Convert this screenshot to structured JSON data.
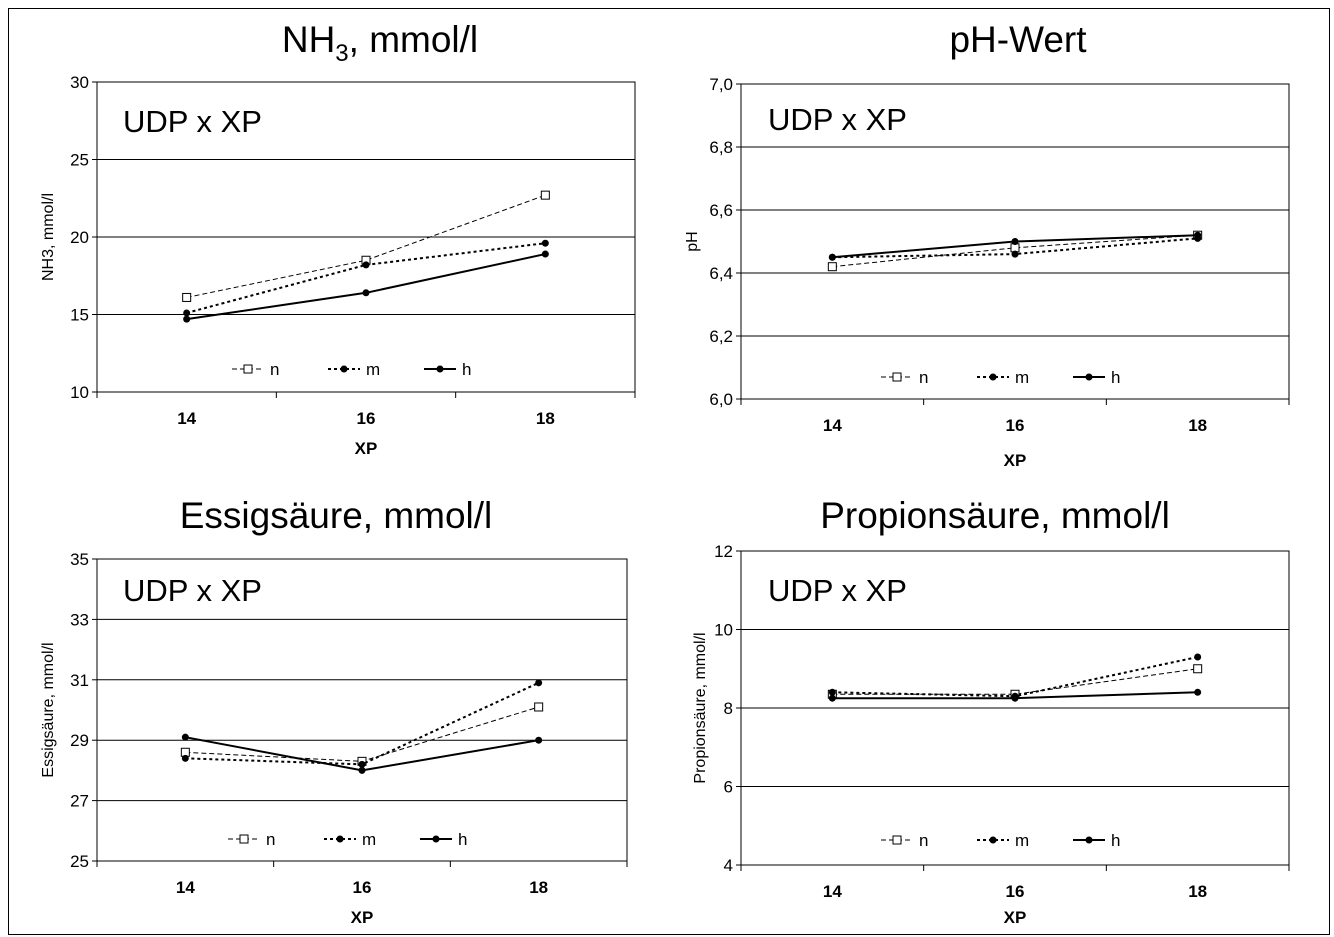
{
  "chart_data": [
    {
      "type": "line",
      "title": "NH",
      "title_sub": "3",
      "title_rest": ", mmol/l",
      "annotation": "UDP x XP",
      "xlabel": "XP",
      "ylabel": "NH3, mmol/l",
      "categories": [
        "14",
        "16",
        "18"
      ],
      "ylim": [
        10,
        30
      ],
      "yticks": [
        "10",
        "15",
        "20",
        "25",
        "30"
      ],
      "ytick_values": [
        10,
        15,
        20,
        25,
        30
      ],
      "grid": true,
      "legend_position": "bottom-center",
      "series": [
        {
          "name": "n",
          "values": [
            16.1,
            18.5,
            22.7
          ]
        },
        {
          "name": "m",
          "values": [
            15.1,
            18.2,
            19.6
          ]
        },
        {
          "name": "h",
          "values": [
            14.7,
            16.4,
            18.9
          ]
        }
      ]
    },
    {
      "type": "line",
      "title": "pH-Wert",
      "annotation": "UDP x XP",
      "xlabel": "XP",
      "ylabel": "pH",
      "categories": [
        "14",
        "16",
        "18"
      ],
      "ylim": [
        6.0,
        7.0
      ],
      "yticks": [
        "6,0",
        "6,2",
        "6,4",
        "6,6",
        "6,8",
        "7,0"
      ],
      "ytick_values": [
        6.0,
        6.2,
        6.4,
        6.6,
        6.8,
        7.0
      ],
      "grid": true,
      "legend_position": "bottom-center",
      "series": [
        {
          "name": "n",
          "values": [
            6.42,
            6.48,
            6.52
          ]
        },
        {
          "name": "m",
          "values": [
            6.45,
            6.46,
            6.51
          ]
        },
        {
          "name": "h",
          "values": [
            6.45,
            6.5,
            6.52
          ]
        }
      ]
    },
    {
      "type": "line",
      "title": "Essigsäure, mmol/l",
      "annotation": "UDP x XP",
      "xlabel": "XP",
      "ylabel": "Essigsäure, mmol/l",
      "categories": [
        "14",
        "16",
        "18"
      ],
      "ylim": [
        25,
        35
      ],
      "yticks": [
        "25",
        "27",
        "29",
        "31",
        "33",
        "35"
      ],
      "ytick_values": [
        25,
        27,
        29,
        31,
        33,
        35
      ],
      "grid": true,
      "legend_position": "bottom-center",
      "series": [
        {
          "name": "n",
          "values": [
            28.6,
            28.3,
            30.1
          ]
        },
        {
          "name": "m",
          "values": [
            28.4,
            28.2,
            30.9
          ]
        },
        {
          "name": "h",
          "values": [
            29.1,
            28.0,
            29.0
          ]
        }
      ]
    },
    {
      "type": "line",
      "title": "Propionsäure, mmol/l",
      "annotation": "UDP x XP",
      "xlabel": "XP",
      "ylabel": "Propionsäure, mmol/l",
      "categories": [
        "14",
        "16",
        "18"
      ],
      "ylim": [
        4,
        12
      ],
      "yticks": [
        "4",
        "6",
        "8",
        "10",
        "12"
      ],
      "ytick_values": [
        4,
        6,
        8,
        10,
        12
      ],
      "grid": true,
      "legend_position": "bottom-center",
      "series": [
        {
          "name": "n",
          "values": [
            8.35,
            8.35,
            9.0
          ]
        },
        {
          "name": "m",
          "values": [
            8.4,
            8.3,
            9.3
          ]
        },
        {
          "name": "h",
          "values": [
            8.25,
            8.25,
            8.4
          ]
        }
      ]
    }
  ]
}
